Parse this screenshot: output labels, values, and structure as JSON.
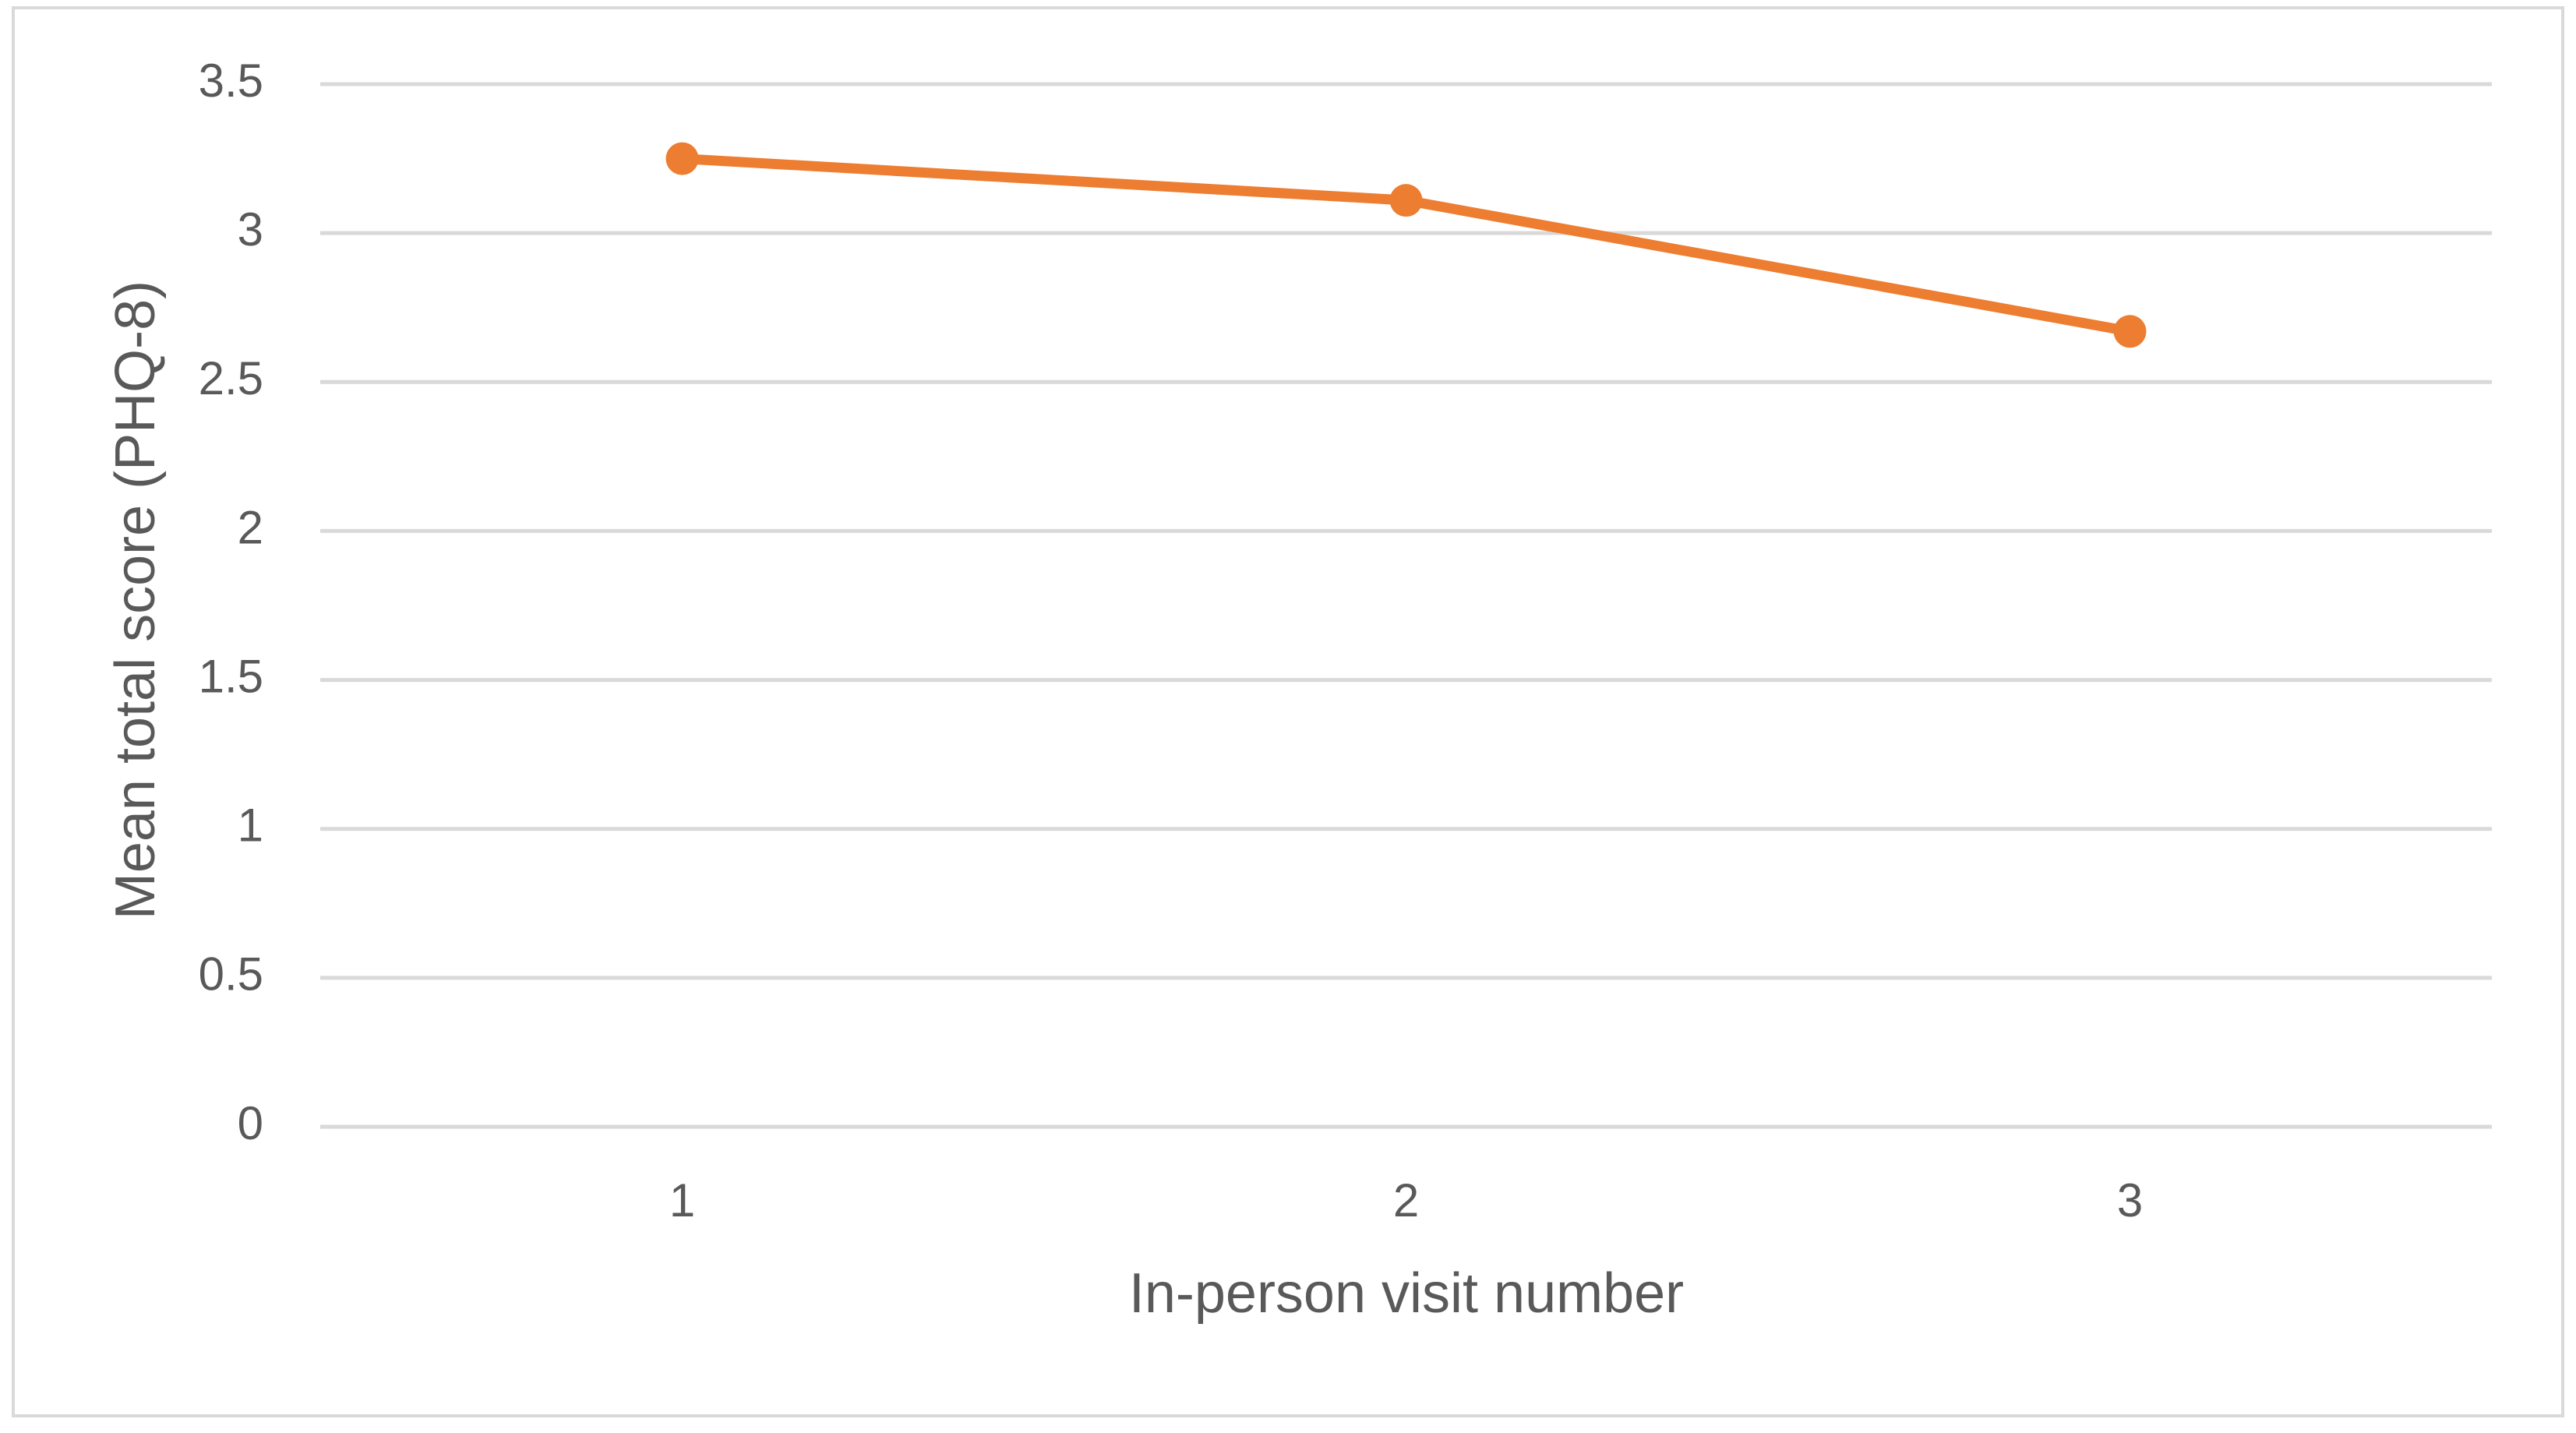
{
  "chart_data": {
    "type": "line",
    "x_label": "In-person visit number",
    "y_label": "Mean total score (PHQ-8)",
    "categories": [
      "1",
      "2",
      "3"
    ],
    "values": [
      3.25,
      3.11,
      2.67
    ],
    "color": "#ed7d31",
    "ylim": [
      0,
      3.5
    ],
    "yticks": [
      0,
      0.5,
      1,
      1.5,
      2,
      2.5,
      3,
      3.5
    ],
    "grid": true
  }
}
